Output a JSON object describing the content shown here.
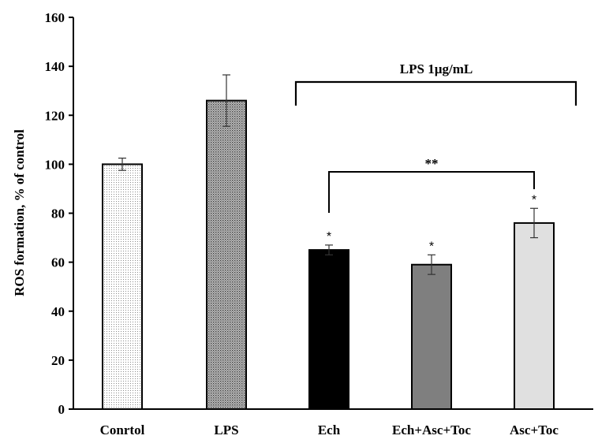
{
  "chart_data": {
    "type": "bar",
    "title": "",
    "xlabel": "",
    "ylabel": "ROS formation, % of control",
    "ylim": [
      0,
      160
    ],
    "yticks": [
      "0",
      "20",
      "40",
      "60",
      "80",
      "100",
      "120",
      "140",
      "160"
    ],
    "grid": false,
    "categories": [
      "Conrtol",
      "LPS",
      "Ech",
      "Ech+Asc+Toc",
      "Asc+Toc"
    ],
    "values": [
      100,
      126,
      65,
      59,
      76
    ],
    "errors": [
      2.5,
      10.5,
      2,
      4,
      6
    ],
    "bar_styles": [
      "dots-light",
      "dots-dark",
      "solid-black",
      "solid-gray",
      "solid-lightgray"
    ],
    "significance": [
      "",
      "",
      "*",
      "*",
      "*"
    ],
    "annotations": {
      "group_bracket_label": "LPS  1µg/mL",
      "group_bracket_span": [
        "Ech",
        "Asc+Toc"
      ],
      "comparison_label": "**",
      "comparison_pair": [
        "Ech",
        "Asc+Toc"
      ]
    },
    "colors": {
      "solid-black": "#000000",
      "solid-gray": "#7f7f7f",
      "solid-lightgray": "#e0e0e0",
      "dots-light": "#ffffff",
      "dots-dark": "#b8b8b8"
    }
  }
}
